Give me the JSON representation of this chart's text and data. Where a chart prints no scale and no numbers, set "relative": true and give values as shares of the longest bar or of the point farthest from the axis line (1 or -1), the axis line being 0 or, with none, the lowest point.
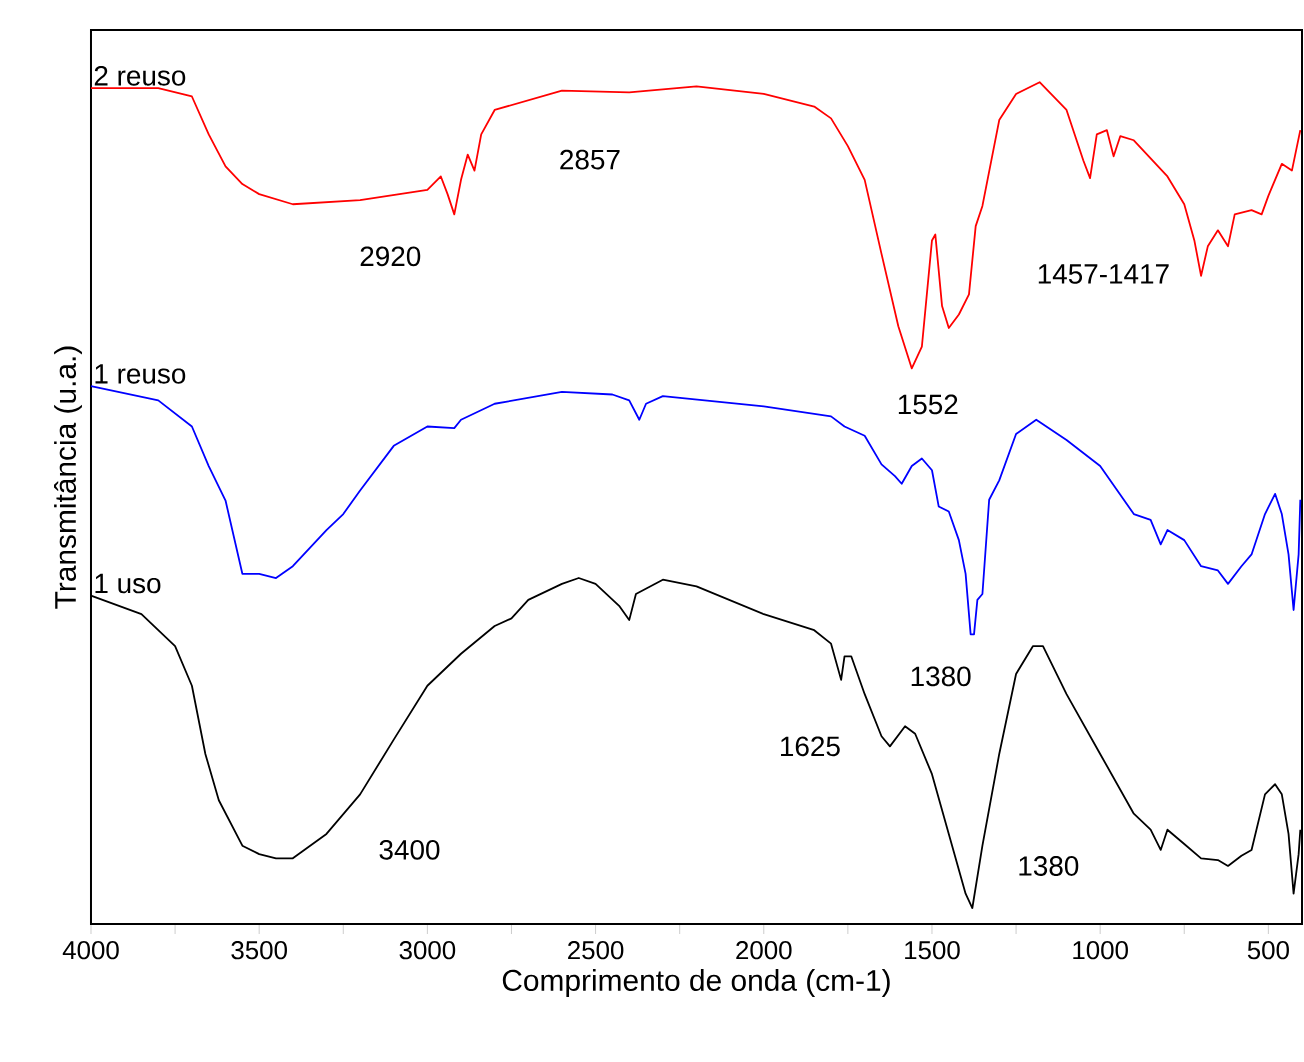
{
  "chart_data": {
    "type": "line",
    "relative": true,
    "xlabel": "Comprimento de onda (cm-1)",
    "ylabel": "Transmitância (u.a.)",
    "xlim": [
      4000,
      400
    ],
    "xticks": [
      4000,
      {
        "value": 3750,
        "label": null
      },
      3500,
      {
        "value": 3250,
        "label": null
      },
      3000,
      {
        "value": 2750,
        "label": null
      },
      2500,
      {
        "value": 2250,
        "label": null
      },
      2000,
      {
        "value": 1750,
        "label": null
      },
      1500,
      {
        "value": 1250,
        "label": null
      },
      1000,
      {
        "value": 750,
        "label": null
      },
      500
    ],
    "series": [
      {
        "name": "2 reuso",
        "color": "#ff0000",
        "x": [
          4000,
          3800,
          3700,
          3650,
          3600,
          3550,
          3500,
          3400,
          3200,
          3000,
          2960,
          2940,
          2920,
          2900,
          2880,
          2860,
          2840,
          2800,
          2600,
          2400,
          2200,
          2000,
          1850,
          1800,
          1750,
          1700,
          1650,
          1600,
          1560,
          1530,
          1500,
          1490,
          1470,
          1450,
          1420,
          1390,
          1370,
          1350,
          1300,
          1250,
          1180,
          1100,
          1050,
          1030,
          1010,
          980,
          960,
          940,
          900,
          800,
          750,
          720,
          700,
          680,
          650,
          620,
          600,
          550,
          520,
          500,
          460,
          430,
          405
        ],
        "values": [
          0.993,
          0.993,
          0.983,
          0.938,
          0.9,
          0.879,
          0.867,
          0.855,
          0.86,
          0.872,
          0.888,
          0.867,
          0.843,
          0.884,
          0.914,
          0.895,
          0.938,
          0.967,
          0.99,
          0.988,
          0.995,
          0.986,
          0.971,
          0.957,
          0.924,
          0.884,
          0.796,
          0.71,
          0.66,
          0.686,
          0.812,
          0.819,
          0.734,
          0.708,
          0.724,
          0.748,
          0.829,
          0.853,
          0.955,
          0.986,
          1.0,
          0.967,
          0.907,
          0.886,
          0.938,
          0.943,
          0.912,
          0.936,
          0.931,
          0.888,
          0.855,
          0.812,
          0.77,
          0.805,
          0.824,
          0.805,
          0.843,
          0.848,
          0.843,
          0.865,
          0.903,
          0.895,
          0.943
        ]
      },
      {
        "name": "1 reuso",
        "color": "#0000ff",
        "x": [
          4000,
          3800,
          3700,
          3650,
          3600,
          3550,
          3500,
          3450,
          3400,
          3300,
          3250,
          3200,
          3100,
          3000,
          2920,
          2900,
          2800,
          2600,
          2450,
          2400,
          2370,
          2350,
          2300,
          2000,
          1800,
          1760,
          1700,
          1650,
          1610,
          1590,
          1560,
          1530,
          1500,
          1480,
          1450,
          1420,
          1400,
          1385,
          1375,
          1365,
          1350,
          1330,
          1300,
          1250,
          1190,
          1100,
          1000,
          900,
          850,
          820,
          800,
          750,
          700,
          650,
          620,
          580,
          550,
          510,
          480,
          460,
          440,
          425,
          410,
          405
        ],
        "values": [
          0.639,
          0.622,
          0.591,
          0.544,
          0.503,
          0.416,
          0.416,
          0.411,
          0.425,
          0.468,
          0.487,
          0.515,
          0.568,
          0.591,
          0.589,
          0.599,
          0.618,
          0.632,
          0.629,
          0.622,
          0.599,
          0.618,
          0.627,
          0.615,
          0.603,
          0.591,
          0.58,
          0.546,
          0.532,
          0.523,
          0.544,
          0.553,
          0.539,
          0.496,
          0.49,
          0.456,
          0.416,
          0.344,
          0.344,
          0.385,
          0.392,
          0.504,
          0.527,
          0.582,
          0.599,
          0.575,
          0.544,
          0.487,
          0.48,
          0.451,
          0.468,
          0.456,
          0.425,
          0.42,
          0.404,
          0.425,
          0.439,
          0.487,
          0.511,
          0.487,
          0.439,
          0.373,
          0.439,
          0.504
        ]
      },
      {
        "name": "1 uso",
        "color": "#000000",
        "x": [
          4000,
          3850,
          3750,
          3700,
          3660,
          3620,
          3550,
          3500,
          3450,
          3400,
          3300,
          3200,
          3100,
          3000,
          2900,
          2800,
          2750,
          2700,
          2600,
          2550,
          2500,
          2430,
          2400,
          2380,
          2300,
          2200,
          2000,
          1850,
          1800,
          1770,
          1760,
          1740,
          1700,
          1650,
          1625,
          1580,
          1550,
          1500,
          1450,
          1400,
          1380,
          1350,
          1300,
          1250,
          1200,
          1170,
          1100,
          1000,
          900,
          850,
          820,
          800,
          750,
          700,
          650,
          620,
          580,
          550,
          510,
          480,
          460,
          440,
          425,
          410,
          405
        ],
        "values": [
          0.39,
          0.368,
          0.33,
          0.283,
          0.202,
          0.147,
          0.093,
          0.083,
          0.078,
          0.078,
          0.107,
          0.154,
          0.219,
          0.283,
          0.321,
          0.354,
          0.363,
          0.385,
          0.404,
          0.411,
          0.404,
          0.378,
          0.361,
          0.392,
          0.409,
          0.401,
          0.368,
          0.349,
          0.333,
          0.29,
          0.318,
          0.318,
          0.273,
          0.223,
          0.211,
          0.235,
          0.226,
          0.178,
          0.107,
          0.036,
          0.019,
          0.093,
          0.202,
          0.297,
          0.33,
          0.33,
          0.273,
          0.202,
          0.131,
          0.112,
          0.088,
          0.112,
          0.095,
          0.078,
          0.076,
          0.069,
          0.081,
          0.088,
          0.154,
          0.166,
          0.154,
          0.107,
          0.036,
          0.083,
          0.112
        ]
      }
    ],
    "annotations": [
      {
        "text": "2920",
        "x": 2920,
        "y": 0.843
      },
      "2857",
      {
        "text": "1552",
        "x": 1560,
        "y": 0.66
      },
      "1457-1417",
      {
        "text": "1380",
        "x": 1385,
        "y": 0.344
      },
      {
        "text": "1625",
        "x": 1625,
        "y": 0.211
      },
      "3400",
      {
        "text": "1380",
        "x": 1380,
        "y": 0.019
      }
    ]
  }
}
